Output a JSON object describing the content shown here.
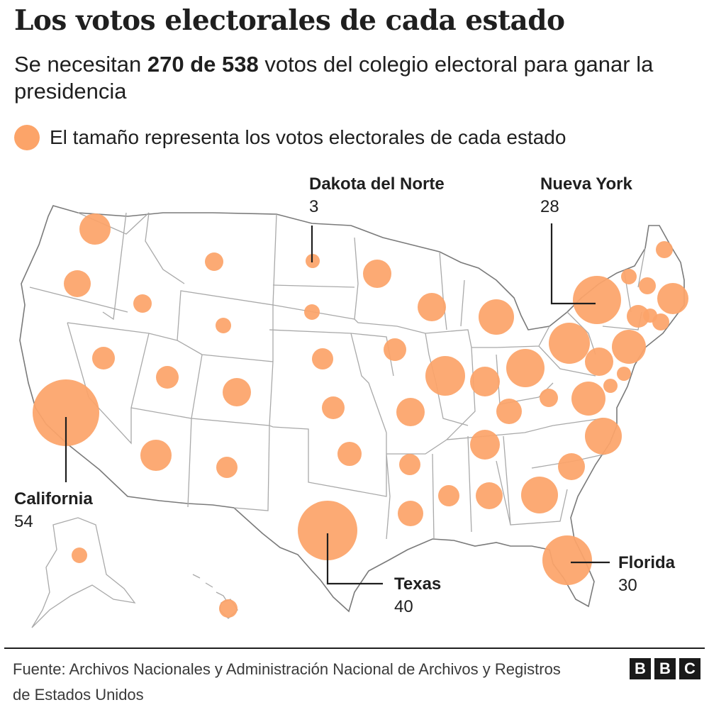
{
  "header": {
    "title": "Los votos electorales de cada estado",
    "subtitle_pre": "Se necesitan ",
    "subtitle_bold": "270 de 538",
    "subtitle_post": " votos del colegio electoral para ganar la presidencia"
  },
  "legend": {
    "text": "El tamaño representa los votos electorales de cada estado"
  },
  "colors": {
    "bubble": "#FCA469",
    "border": "#a9a9a9",
    "text": "#1f1f1f"
  },
  "callouts": {
    "california": {
      "name": "California",
      "value": "54"
    },
    "texas": {
      "name": "Texas",
      "value": "40"
    },
    "florida": {
      "name": "Florida",
      "value": "30"
    },
    "north_dakota": {
      "name": "Dakota del Norte",
      "value": "3"
    },
    "new_york": {
      "name": "Nueva York",
      "value": "28"
    }
  },
  "footer": {
    "source": "Fuente: Archivos Nacionales y Administración Nacional de Archivos y Registros de Estados Unidos",
    "logo_letters": [
      "B",
      "B",
      "C"
    ]
  }
}
